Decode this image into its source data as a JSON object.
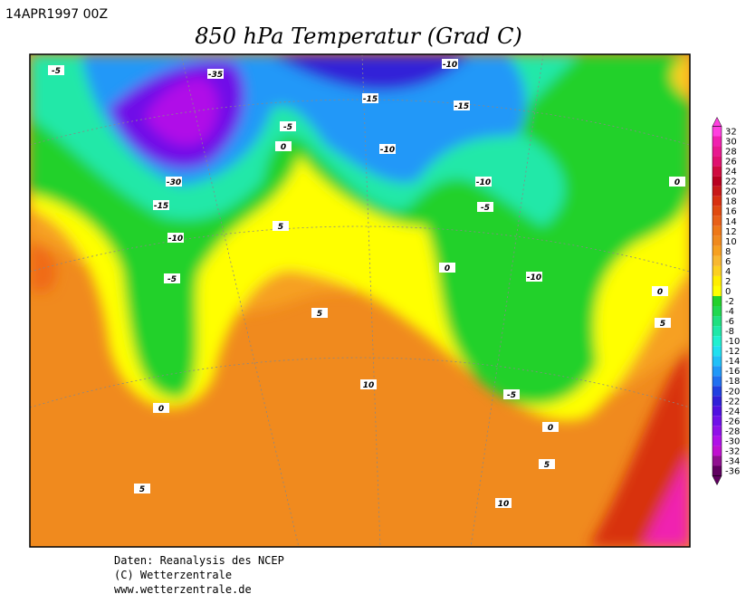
{
  "header": {
    "date": "14APR1997 00Z",
    "title": "850 hPa Temperatur (Grad C)"
  },
  "contour_labels": [
    -5,
    -35,
    -10,
    -15,
    -15,
    -5,
    0,
    -10,
    -30,
    -10,
    -15,
    -5,
    -10,
    5,
    0,
    -5,
    -10,
    0,
    0,
    5,
    5,
    10,
    -5,
    0,
    0,
    5,
    5,
    10
  ],
  "legend": {
    "ticks": [
      32,
      30,
      28,
      26,
      24,
      22,
      20,
      18,
      16,
      14,
      12,
      10,
      8,
      6,
      4,
      2,
      0,
      -2,
      -4,
      -6,
      -8,
      -10,
      -12,
      -14,
      -16,
      -18,
      -20,
      -22,
      -24,
      -26,
      -28,
      -30,
      -32,
      -34,
      -36
    ],
    "colors": [
      "#ff40e0",
      "#f020b0",
      "#e81890",
      "#e01070",
      "#d00a40",
      "#b80020",
      "#c81818",
      "#d83010",
      "#e04a10",
      "#e86018",
      "#ee7818",
      "#f08a1e",
      "#f6a020",
      "#f8b830",
      "#fcd020",
      "#ffee00",
      "#ffff00",
      "#22d12b",
      "#20d850",
      "#20e080",
      "#20e8a8",
      "#20f0d0",
      "#20e0f0",
      "#20c0f8",
      "#2098f8",
      "#2070f0",
      "#2040e0",
      "#3020d8",
      "#5010e0",
      "#7010e8",
      "#9010e8",
      "#b010e8",
      "#c010d0",
      "#901090",
      "#600060"
    ]
  },
  "footer": [
    "Daten: Reanalysis des NCEP",
    "(C) Wetterzentrale",
    "www.wetterzentrale.de"
  ]
}
